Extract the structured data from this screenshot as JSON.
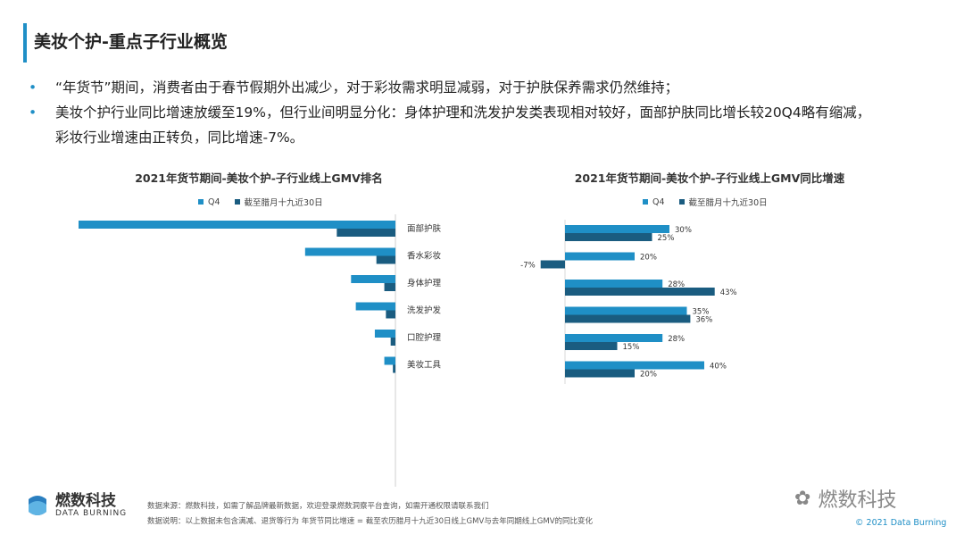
{
  "page": {
    "title": "美妆个护-重点子行业概览",
    "bullets": [
      "“年货节”期间，消费者由于春节假期外出减少，对于彩妆需求明显减弱，对于护肤保养需求仍然维持；",
      "美妆个护行业同比增速放缓至19%，但行业间明显分化：身体护理和洗发护发类表现相对较好，面部护肤同比增长较20Q4略有缩减，彩妆行业增速由正转负，同比增速-7%。"
    ],
    "bullet_symbol": "•"
  },
  "colors": {
    "q4": "#1f8fc6",
    "recent": "#1a5c80",
    "accent": "#1f8fc6"
  },
  "legend": {
    "q4": "Q4",
    "recent": "截至腊月十九近30日"
  },
  "chart_data": [
    {
      "type": "bar",
      "orientation": "horizontal",
      "title": "2021年货节期间-美妆个护-子行业线上GMV排名",
      "categories": [
        "面部护肤",
        "香水彩妆",
        "身体护理",
        "洗发护发",
        "口腔护理",
        "美妆工具"
      ],
      "series": [
        {
          "name": "Q4",
          "values": [
            100,
            28.5,
            14,
            12.5,
            6.5,
            3.5
          ]
        },
        {
          "name": "截至腊月十九近30日",
          "values": [
            18.5,
            6,
            3.5,
            3,
            1.5,
            0.8
          ]
        }
      ],
      "xlim": [
        0,
        100
      ],
      "data_labels": false
    },
    {
      "type": "bar",
      "orientation": "horizontal",
      "title": "2021年货节期间-美妆个护-子行业线上GMV同比增速",
      "categories": [
        "面部护肤",
        "香水彩妆",
        "身体护理",
        "洗发护发",
        "口腔护理",
        "美妆工具"
      ],
      "series": [
        {
          "name": "Q4",
          "values": [
            30,
            20,
            28,
            35,
            28,
            40
          ]
        },
        {
          "name": "截至腊月十九近30日",
          "values": [
            25,
            -7,
            43,
            36,
            15,
            20
          ]
        }
      ],
      "value_suffix": "%",
      "data_labels": true
    }
  ],
  "footer": {
    "source": "数据来源：燃数科技，如需了解品牌最新数据，欢迎登录燃数洞察平台查询，如需开通权限请联系我们",
    "note": "数据说明：以上数据未包含满减、退货等行为   年货节同比增速 = 截至农历腊月十九近30日线上GMV与去年同期线上GMV的同比变化"
  },
  "brand": {
    "name_cn": "燃数科技",
    "name_en": "DATA BURNING",
    "wechat": "燃数科技",
    "copyright": "© 2021 Data Burning"
  }
}
